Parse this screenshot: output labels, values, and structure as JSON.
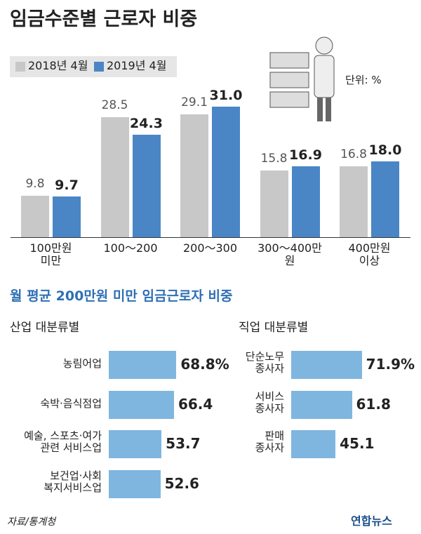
{
  "chart_data": [
    {
      "type": "bar",
      "title": "임금수준별 근로자 비중",
      "unit_label": "단위: %",
      "categories": [
        "100만원\n미만",
        "100～200",
        "200～300",
        "300～400만원",
        "400만원\n이상"
      ],
      "series": [
        {
          "name": "2018년 4월",
          "color": "#c8c8c8",
          "values": [
            9.8,
            28.5,
            29.1,
            15.8,
            16.8
          ],
          "value_labels": [
            "9.8",
            "28.5",
            "29.1",
            "15.8",
            "16.8"
          ]
        },
        {
          "name": "2019년 4월",
          "color": "#4a86c5",
          "values": [
            9.7,
            24.3,
            31.0,
            16.9,
            18.0
          ],
          "value_labels": [
            "9.7",
            "24.3",
            "31.0",
            "16.9",
            "18.0"
          ]
        }
      ]
    },
    {
      "type": "hbar",
      "title": "산업 대분류별",
      "color": "#7fb6e0",
      "categories": [
        "농림어업",
        "숙박·음식점업",
        "예술, 스포츠·여가\n관련 서비스업",
        "보건업·사회\n복지서비스업"
      ],
      "values": [
        68.8,
        66.4,
        53.7,
        52.6
      ],
      "value_labels": [
        "68.8%",
        "66.4",
        "53.7",
        "52.6"
      ]
    },
    {
      "type": "hbar",
      "title": "직업 대분류별",
      "color": "#7fb6e0",
      "categories": [
        "단순노무\n종사자",
        "서비스\n종사자",
        "판매\n종사자"
      ],
      "values": [
        71.9,
        61.8,
        45.1
      ],
      "value_labels": [
        "71.9%",
        "61.8",
        "45.1"
      ]
    }
  ],
  "section_title": "월 평균 200만원 미만 임금근로자 비중",
  "source": "자료/통계청",
  "logo": "연합뉴스"
}
